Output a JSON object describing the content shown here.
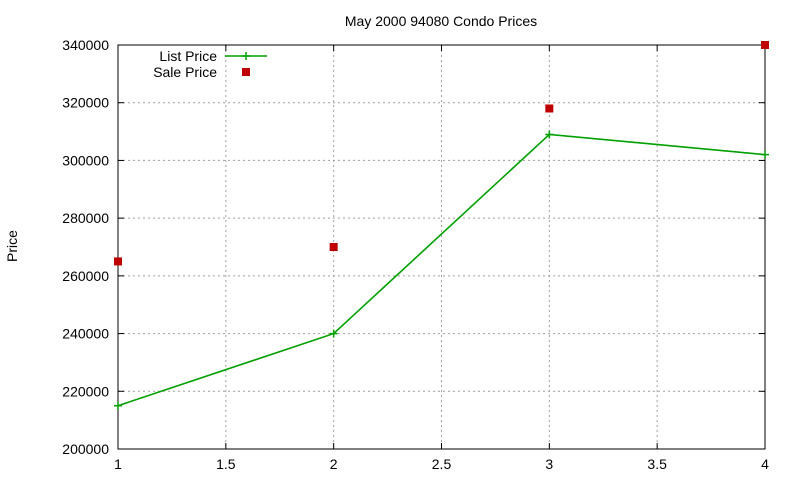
{
  "chart_data": {
    "type": "line",
    "title": "May 2000 94080 Condo Prices",
    "xlabel": "",
    "ylabel": "Price",
    "xlim": [
      1,
      4
    ],
    "ylim": [
      200000,
      340000
    ],
    "xticks": [
      1,
      1.5,
      2,
      2.5,
      3,
      3.5,
      4
    ],
    "xtick_labels": [
      "1",
      "1.5",
      "2",
      "2.5",
      "3",
      "3.5",
      "4"
    ],
    "yticks": [
      200000,
      220000,
      240000,
      260000,
      280000,
      300000,
      320000,
      340000
    ],
    "ytick_labels": [
      "200000",
      "220000",
      "240000",
      "260000",
      "280000",
      "300000",
      "320000",
      "340000"
    ],
    "grid": true,
    "legend_position": "top-left",
    "series": [
      {
        "name": "List Price",
        "style": "linespoints",
        "marker": "plus",
        "color": "#00a000",
        "x": [
          1,
          2,
          3,
          4
        ],
        "y": [
          215000,
          240000,
          309000,
          302000
        ]
      },
      {
        "name": "Sale Price",
        "style": "points",
        "marker": "square",
        "color": "#c00000",
        "x": [
          1,
          2,
          3,
          4
        ],
        "y": [
          265000,
          270000,
          318000,
          340000
        ]
      }
    ]
  }
}
